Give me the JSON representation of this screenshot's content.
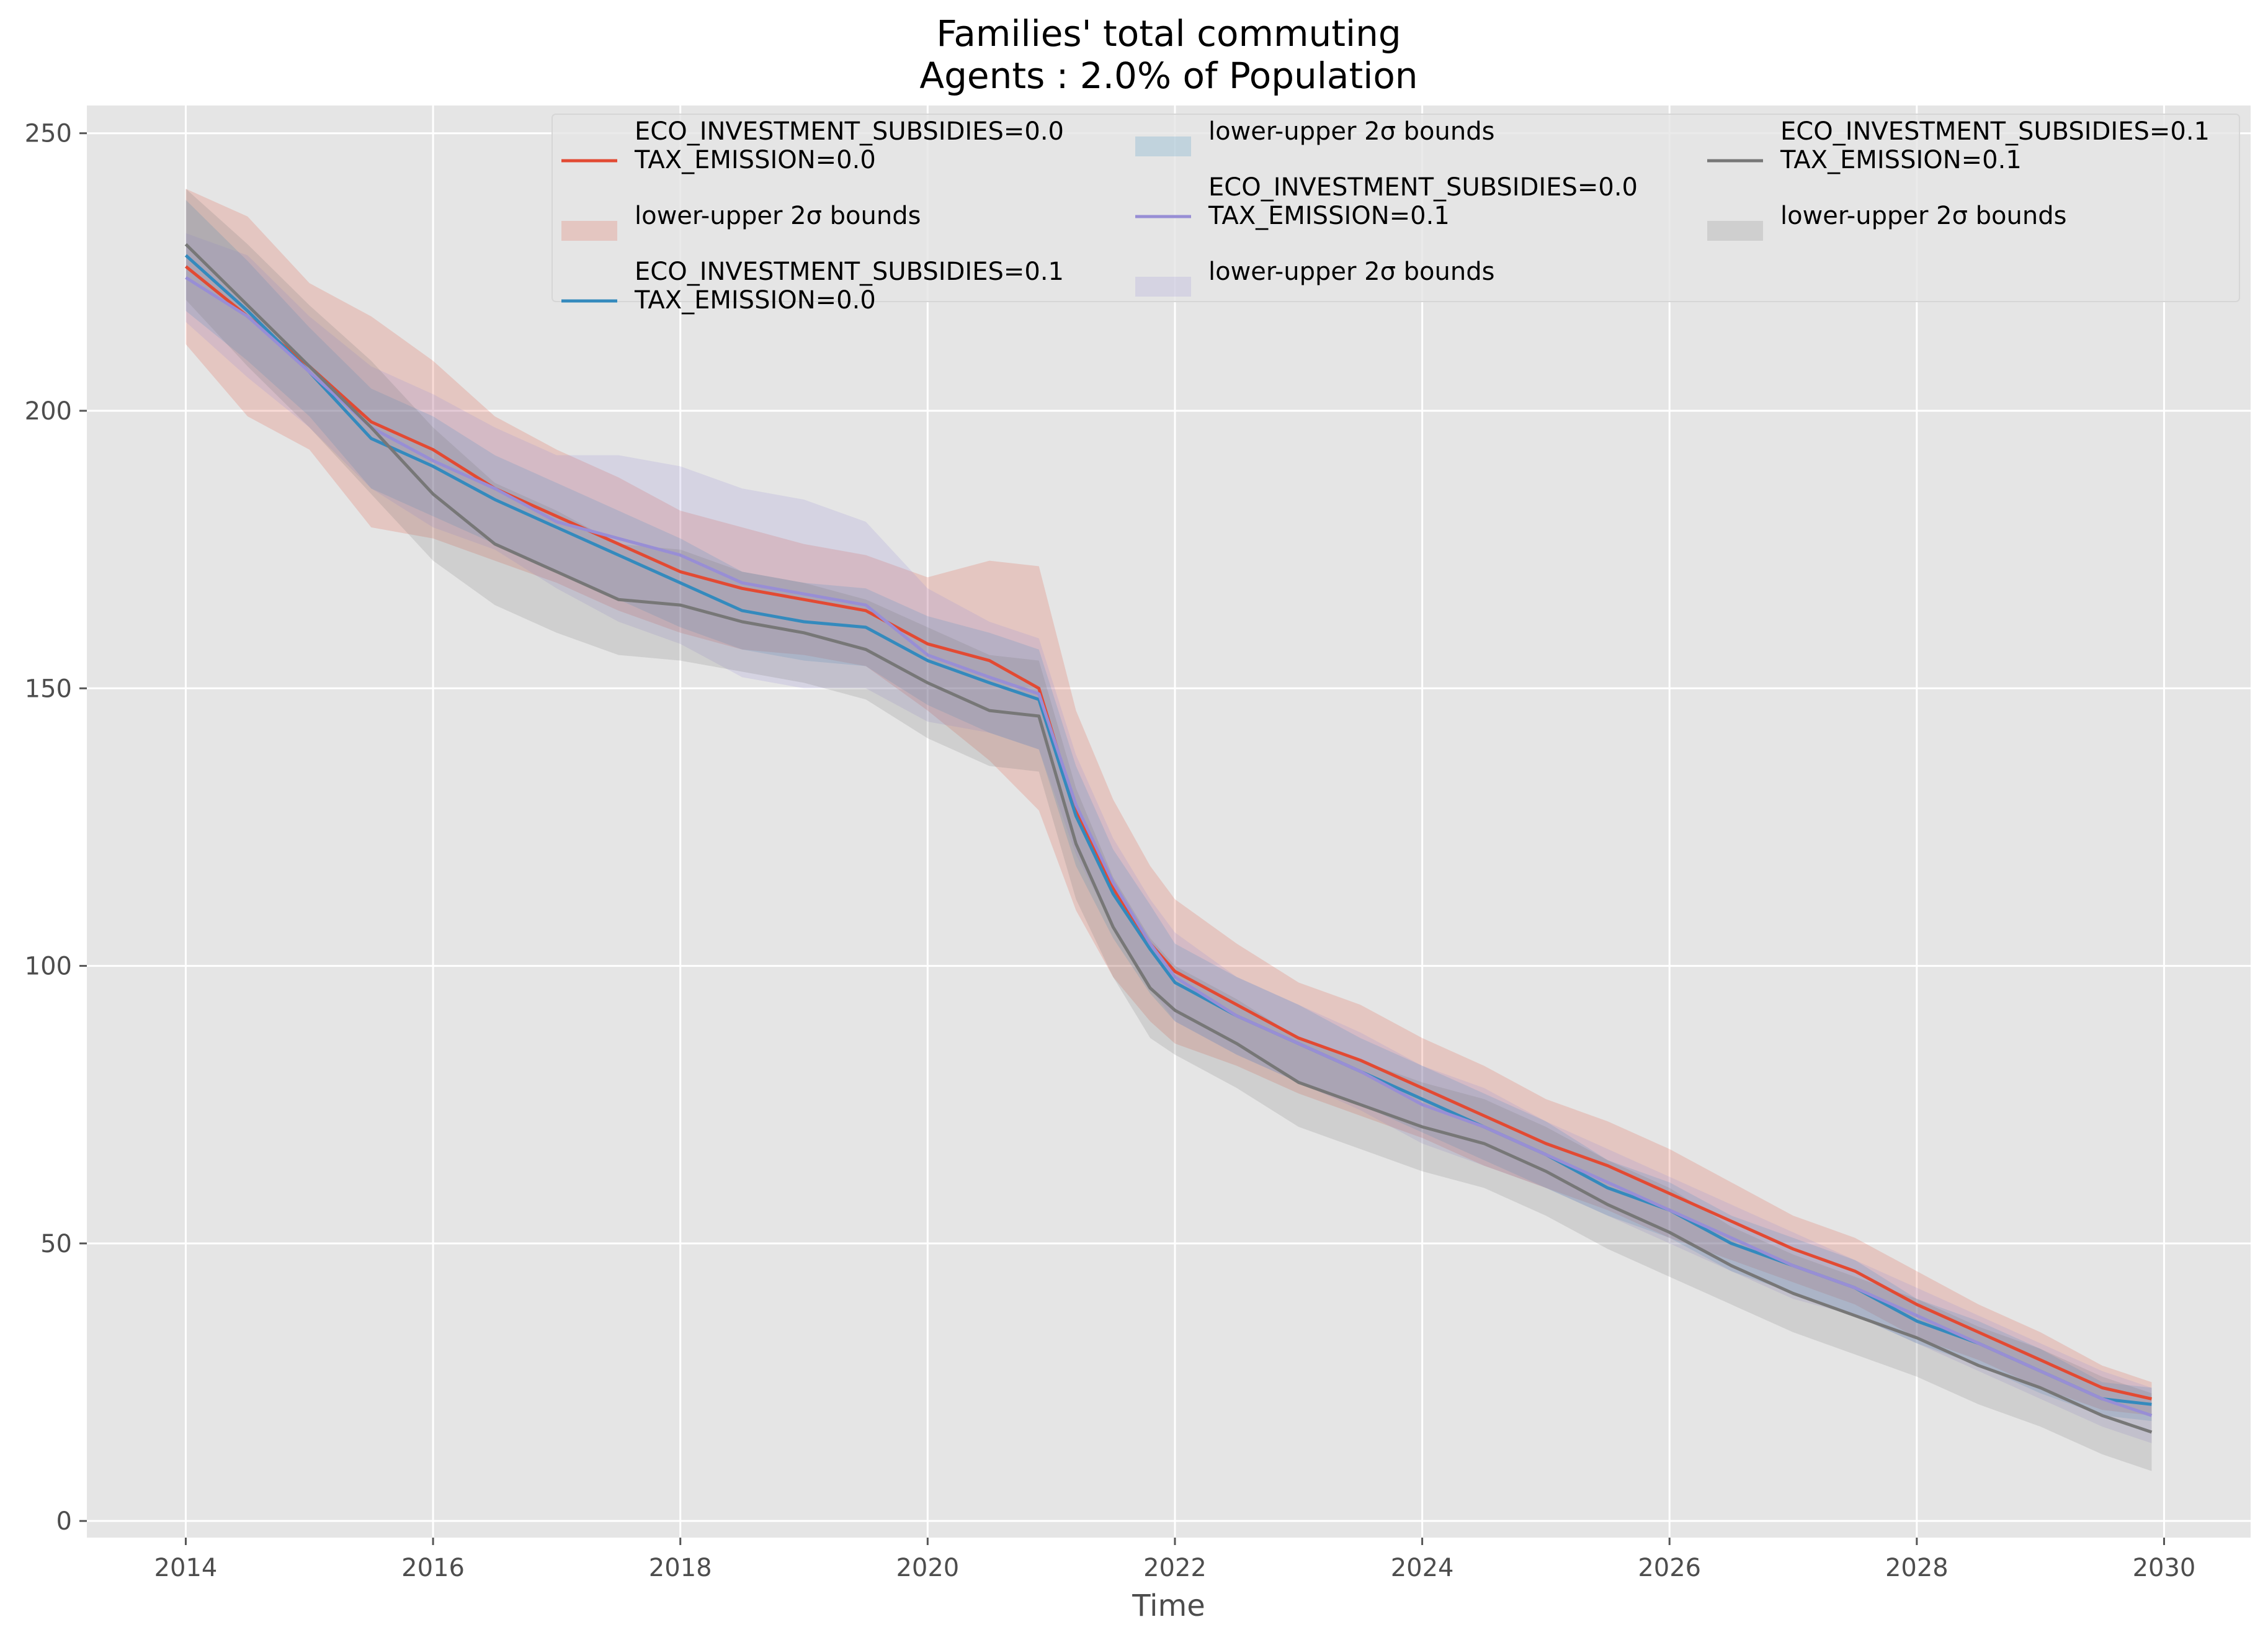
{
  "chart_data": {
    "type": "line",
    "title": "Families' total commuting",
    "subtitle": "Agents : 2.0% of Population",
    "xlabel": "Time",
    "ylabel": "",
    "xlim": [
      2013.2,
      2030.7
    ],
    "ylim": [
      -3,
      255
    ],
    "x_ticks": [
      2014,
      2016,
      2018,
      2020,
      2022,
      2024,
      2026,
      2028,
      2030
    ],
    "y_ticks": [
      0,
      50,
      100,
      150,
      200,
      250
    ],
    "grid": true,
    "legend_position": "top",
    "background": "#e5e5e5",
    "x": [
      2014,
      2014.5,
      2015,
      2015.5,
      2016,
      2016.5,
      2017,
      2017.5,
      2018,
      2018.5,
      2019,
      2019.5,
      2020,
      2020.5,
      2020.9,
      2021.2,
      2021.5,
      2021.8,
      2022,
      2022.5,
      2023,
      2023.5,
      2024,
      2024.5,
      2025,
      2025.5,
      2026,
      2026.5,
      2027,
      2027.5,
      2028,
      2028.5,
      2029,
      2029.5,
      2029.9
    ],
    "series": [
      {
        "name": "ECO_INVESTMENT_SUBSIDIES=0.0\nTAX_EMISSION=0.0",
        "name_lines": [
          "ECO_INVESTMENT_SUBSIDIES=0.0",
          "TAX_EMISSION=0.0"
        ],
        "color": "#e24a33",
        "values": [
          226,
          217,
          208,
          198,
          193,
          186,
          181,
          176,
          171,
          168,
          166,
          164,
          158,
          155,
          150,
          128,
          114,
          104,
          99,
          93,
          87,
          83,
          78,
          73,
          68,
          64,
          59,
          54,
          49,
          45,
          39,
          34,
          29,
          24,
          22
        ],
        "band_label": "lower-upper 2σ bounds",
        "band_halfwidth": [
          14,
          18,
          15,
          19,
          16,
          13,
          12,
          12,
          11,
          11,
          10,
          10,
          12,
          18,
          22,
          18,
          16,
          14,
          13,
          11,
          10,
          10,
          9,
          9,
          8,
          8,
          8,
          7,
          6,
          6,
          6,
          5,
          5,
          4,
          3
        ]
      },
      {
        "name": "ECO_INVESTMENT_SUBSIDIES=0.1\nTAX_EMISSION=0.0",
        "name_lines": [
          "ECO_INVESTMENT_SUBSIDIES=0.1",
          "TAX_EMISSION=0.0"
        ],
        "color": "#348abd",
        "values": [
          228,
          218,
          207,
          195,
          190,
          184,
          179,
          174,
          169,
          164,
          162,
          161,
          155,
          151,
          148,
          127,
          113,
          103,
          97,
          91,
          86,
          81,
          76,
          71,
          66,
          60,
          56,
          50,
          46,
          42,
          36,
          32,
          27,
          22,
          21
        ],
        "band_label": "lower-upper 2σ bounds",
        "band_halfwidth": [
          10,
          9,
          8,
          9,
          9,
          8,
          8,
          8,
          8,
          7,
          7,
          7,
          8,
          9,
          9,
          9,
          8,
          8,
          7,
          7,
          7,
          6,
          6,
          6,
          6,
          5,
          5,
          5,
          5,
          5,
          4,
          4,
          4,
          3,
          3
        ]
      },
      {
        "name": "ECO_INVESTMENT_SUBSIDIES=0.0\nTAX_EMISSION=0.1",
        "name_lines": [
          "ECO_INVESTMENT_SUBSIDIES=0.0",
          "TAX_EMISSION=0.1"
        ],
        "color": "#988ed5",
        "values": [
          224,
          217,
          207,
          197,
          191,
          186,
          180,
          177,
          174,
          169,
          167,
          165,
          156,
          152,
          149,
          129,
          115,
          104,
          98,
          91,
          86,
          81,
          75,
          71,
          66,
          61,
          56,
          51,
          46,
          42,
          37,
          32,
          27,
          22,
          19
        ],
        "band_label": "lower-upper 2σ bounds",
        "band_halfwidth": [
          8,
          11,
          10,
          11,
          12,
          11,
          12,
          15,
          16,
          17,
          17,
          15,
          12,
          10,
          10,
          9,
          8,
          8,
          8,
          7,
          7,
          7,
          7,
          7,
          6,
          6,
          6,
          6,
          6,
          5,
          5,
          5,
          5,
          5,
          5
        ]
      },
      {
        "name": "ECO_INVESTMENT_SUBSIDIES=0.1\nTAX_EMISSION=0.1",
        "name_lines": [
          "ECO_INVESTMENT_SUBSIDIES=0.1",
          "TAX_EMISSION=0.1"
        ],
        "color": "#777777",
        "values": [
          230,
          219,
          208,
          197,
          185,
          176,
          171,
          166,
          165,
          162,
          160,
          157,
          151,
          146,
          145,
          122,
          107,
          96,
          92,
          86,
          79,
          75,
          71,
          68,
          63,
          57,
          52,
          46,
          41,
          37,
          33,
          28,
          24,
          19,
          16
        ],
        "band_label": "lower-upper 2σ bounds",
        "band_halfwidth": [
          10,
          11,
          11,
          12,
          12,
          11,
          11,
          10,
          10,
          9,
          9,
          9,
          10,
          10,
          10,
          10,
          9,
          9,
          8,
          8,
          8,
          8,
          8,
          8,
          8,
          8,
          8,
          7,
          7,
          7,
          7,
          7,
          7,
          7,
          7
        ]
      }
    ]
  }
}
